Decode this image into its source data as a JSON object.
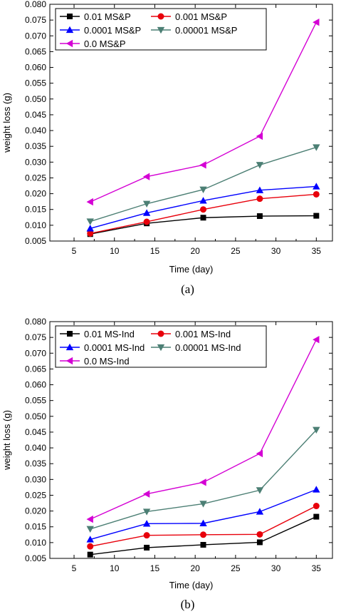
{
  "chart_data": [
    {
      "type": "line",
      "caption": "(a)",
      "xlabel": "Time (day)",
      "ylabel": "weight loss (g)",
      "xlim": [
        2,
        37
      ],
      "ylim": [
        0.005,
        0.08
      ],
      "x_ticks": [
        "5",
        "10",
        "15",
        "20",
        "25",
        "30",
        "35"
      ],
      "y_ticks": [
        "0.005",
        "0.010",
        "0.015",
        "0.020",
        "0.025",
        "0.030",
        "0.035",
        "0.040",
        "0.045",
        "0.050",
        "0.055",
        "0.060",
        "0.065",
        "0.070",
        "0.075",
        "0.080"
      ],
      "grid": false,
      "legend_position": "top-left",
      "x": [
        7,
        14,
        21,
        28,
        35
      ],
      "series": [
        {
          "name": "0.01 MS&P",
          "color": "#000000",
          "marker": "square",
          "values": [
            0.0072,
            0.0106,
            0.0124,
            0.0129,
            0.013
          ]
        },
        {
          "name": "0.001 MS&P",
          "color": "#e8000b",
          "marker": "circle",
          "values": [
            0.0074,
            0.0111,
            0.015,
            0.0184,
            0.0198
          ]
        },
        {
          "name": "0.0001 MS&P",
          "color": "#0000ff",
          "marker": "triangle-up",
          "values": [
            0.009,
            0.0139,
            0.0178,
            0.0211,
            0.0223
          ]
        },
        {
          "name": "0.00001 MS&P",
          "color": "#4c7f74",
          "marker": "triangle-down",
          "values": [
            0.0112,
            0.0168,
            0.0213,
            0.0291,
            0.0347
          ]
        },
        {
          "name": "0.0 MS&P",
          "color": "#d400d4",
          "marker": "triangle-left",
          "values": [
            0.0174,
            0.0254,
            0.0291,
            0.0382,
            0.0743
          ]
        }
      ]
    },
    {
      "type": "line",
      "caption": "(b)",
      "xlabel": "Time (day)",
      "ylabel": "weight loss (g)",
      "xlim": [
        2,
        37
      ],
      "ylim": [
        0.005,
        0.08
      ],
      "x_ticks": [
        "5",
        "10",
        "15",
        "20",
        "25",
        "30",
        "35"
      ],
      "y_ticks": [
        "0.005",
        "0.010",
        "0.015",
        "0.020",
        "0.025",
        "0.030",
        "0.035",
        "0.040",
        "0.045",
        "0.050",
        "0.055",
        "0.060",
        "0.065",
        "0.070",
        "0.075",
        "0.080"
      ],
      "grid": false,
      "legend_position": "top-left",
      "x": [
        7,
        14,
        21,
        28,
        35
      ],
      "series": [
        {
          "name": "0.01 MS-Ind",
          "color": "#000000",
          "marker": "square",
          "values": [
            0.0062,
            0.0084,
            0.0093,
            0.0101,
            0.0182
          ]
        },
        {
          "name": "0.001 MS-Ind",
          "color": "#e8000b",
          "marker": "circle",
          "values": [
            0.0088,
            0.0123,
            0.0125,
            0.0126,
            0.0216
          ]
        },
        {
          "name": "0.0001 MS-Ind",
          "color": "#0000ff",
          "marker": "triangle-up",
          "values": [
            0.011,
            0.016,
            0.0161,
            0.0198,
            0.0268
          ]
        },
        {
          "name": "0.00001 MS-Ind",
          "color": "#4c7f74",
          "marker": "triangle-down",
          "values": [
            0.0143,
            0.0198,
            0.0223,
            0.0266,
            0.0457
          ]
        },
        {
          "name": "0.0 MS-Ind",
          "color": "#d400d4",
          "marker": "triangle-left",
          "values": [
            0.0174,
            0.0254,
            0.0291,
            0.0382,
            0.0743
          ]
        }
      ]
    }
  ]
}
